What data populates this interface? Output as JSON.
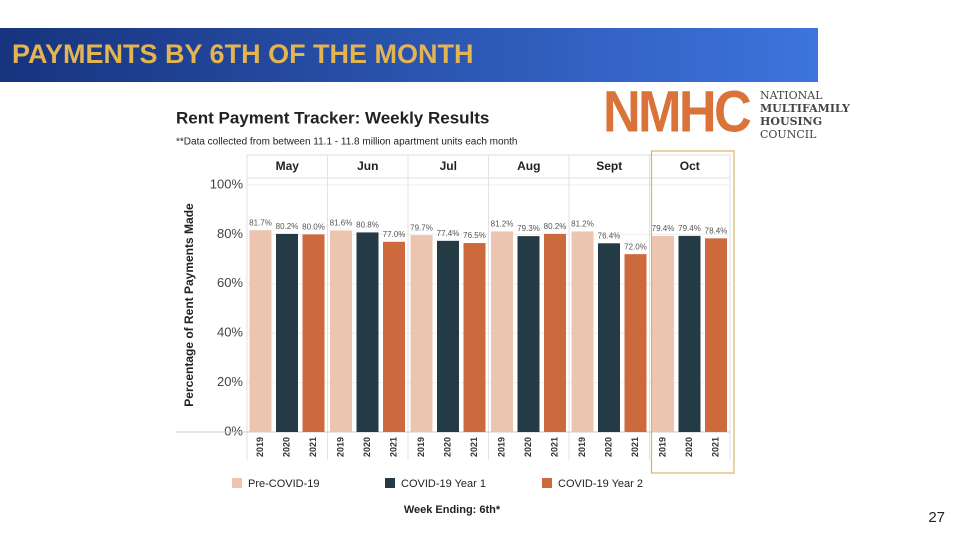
{
  "slide_title": "PAYMENTS BY 6TH OF THE MONTH",
  "logo": {
    "mark": "NMHC",
    "lines": [
      "NATIONAL",
      "MULTIFAMILY",
      "HOUSING",
      "COUNCIL"
    ]
  },
  "page_number": "27",
  "chart_data": {
    "type": "bar",
    "title": "Rent Payment Tracker: Weekly Results",
    "subtitle": "**Data collected from between 11.1 - 11.8 million apartment units each month",
    "y_label": "Percentage of Rent Payments Made",
    "x_label": "Week Ending: 6th*",
    "categories": [
      "May",
      "Jun",
      "Jul",
      "Aug",
      "Sept",
      "Oct"
    ],
    "group_labels": [
      "2019",
      "2020",
      "2021"
    ],
    "highlight": 5,
    "grid": true,
    "ylim": [
      0,
      100
    ],
    "yticks": [
      {
        "value": 0,
        "label": "0%"
      },
      {
        "value": 20,
        "label": "20%"
      },
      {
        "value": 40,
        "label": "40%"
      },
      {
        "value": 60,
        "label": "60%"
      },
      {
        "value": 80,
        "label": "80%"
      },
      {
        "value": 100,
        "label": "100%"
      }
    ],
    "series": [
      {
        "name": "Pre-COVID-19",
        "color": "#ecc5b0",
        "values": [
          81.7,
          81.6,
          79.7,
          81.2,
          81.2,
          79.4
        ],
        "value_labels": [
          "81.7%",
          "81.6%",
          "79.7%",
          "81.2%",
          "81.2%",
          "79.4%"
        ]
      },
      {
        "name": "COVID-19 Year 1",
        "color": "#243a45",
        "values": [
          80.2,
          80.8,
          77.4,
          79.3,
          76.4,
          79.4
        ],
        "value_labels": [
          "80.2%",
          "80.8%",
          "77.4%",
          "79.3%",
          "76.4%",
          "79.4%"
        ]
      },
      {
        "name": "COVID-19 Year 2",
        "color": "#cc6a3d",
        "values": [
          80.0,
          77.0,
          76.5,
          80.2,
          72.0,
          78.4
        ],
        "value_labels": [
          "80.0%",
          "77.0%",
          "76.5%",
          "80.2%",
          "72.0%",
          "78.4%"
        ]
      }
    ]
  }
}
